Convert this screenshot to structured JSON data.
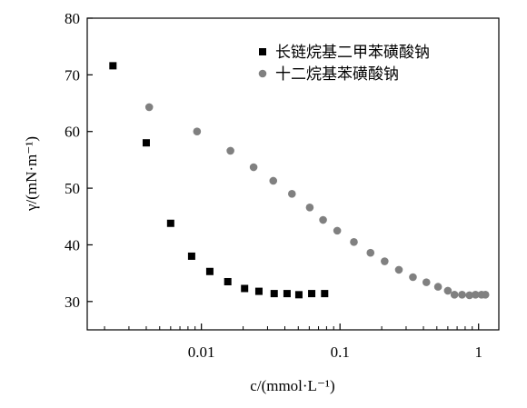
{
  "chart_data": {
    "type": "scatter",
    "xscale": "log",
    "xlim": [
      0.0015,
      1.4
    ],
    "ylim": [
      25,
      80
    ],
    "xticks": [
      {
        "value": 0.01,
        "label": "0.01"
      },
      {
        "value": 0.1,
        "label": "0.1"
      },
      {
        "value": 1,
        "label": "1"
      }
    ],
    "yticks": [
      {
        "value": 30,
        "label": "30"
      },
      {
        "value": 40,
        "label": "40"
      },
      {
        "value": 50,
        "label": "50"
      },
      {
        "value": 60,
        "label": "60"
      },
      {
        "value": 70,
        "label": "70"
      },
      {
        "value": 80,
        "label": "80"
      }
    ],
    "xlabel": "c/(mmol·L⁻¹)",
    "ylabel": "γ/(mN·m⁻¹)",
    "legend": "top-right",
    "series": [
      {
        "name": "长链烷基二甲苯磺酸钠",
        "marker": "square",
        "color": "#000000",
        "x": [
          0.0023,
          0.004,
          0.006,
          0.0085,
          0.0115,
          0.0155,
          0.0205,
          0.026,
          0.0335,
          0.0415,
          0.0505,
          0.0625,
          0.0775
        ],
        "y": [
          71.6,
          58.0,
          43.8,
          38.0,
          35.3,
          33.5,
          32.3,
          31.8,
          31.4,
          31.4,
          31.2,
          31.4,
          31.4
        ]
      },
      {
        "name": "十二烷基苯磺酸钠",
        "marker": "circle",
        "color": "#808080",
        "x": [
          0.0042,
          0.0093,
          0.0162,
          0.0238,
          0.033,
          0.045,
          0.0605,
          0.0755,
          0.0955,
          0.126,
          0.166,
          0.21,
          0.266,
          0.336,
          0.42,
          0.51,
          0.6,
          0.67,
          0.76,
          0.86,
          0.95,
          1.05,
          1.12
        ],
        "y": [
          64.3,
          60.0,
          56.6,
          53.7,
          51.3,
          49.0,
          46.6,
          44.4,
          42.5,
          40.5,
          38.6,
          37.1,
          35.6,
          34.3,
          33.4,
          32.6,
          31.9,
          31.2,
          31.2,
          31.1,
          31.2,
          31.2,
          31.2
        ]
      }
    ]
  }
}
